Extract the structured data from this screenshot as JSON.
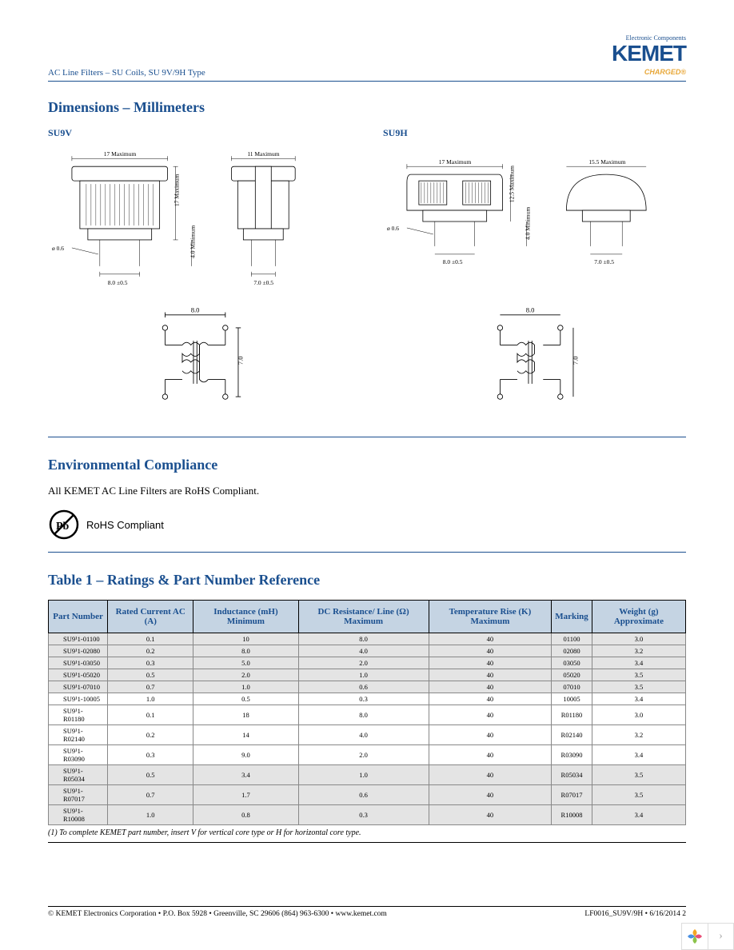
{
  "header": {
    "doc_title": "AC Line Filters – SU Coils, SU 9V/9H Type",
    "logo_tag": "Electronic Components",
    "logo_main": "KEMET",
    "logo_sub": "CHARGED®"
  },
  "sections": {
    "dimensions_title": "Dimensions – Millimeters",
    "compliance_title": "Environmental Compliance",
    "compliance_text": "All KEMET AC Line Filters are RoHS Compliant.",
    "rohs_label": "RoHS Compliant",
    "table_title": "Table 1 – Ratings & Part Number Reference"
  },
  "dims": {
    "su9v": {
      "label": "SU9V",
      "w1": "17 Maximum",
      "w2": "11 Maximum",
      "h1": "17 Maximum",
      "pin_w1": "8.0 ±0.5",
      "pin_w2": "7.0 ±0.5",
      "pin_l": "4.0 Minimum",
      "pin_d": "ø 0.6",
      "sch_w": "8.0",
      "sch_h": "7.0"
    },
    "su9h": {
      "label": "SU9H",
      "w1": "17 Maximum",
      "w2": "15.5 Maximum",
      "h1": "12.5 Maximum",
      "pin_w1": "8.0 ±0.5",
      "pin_w2": "7.0 ±0.5",
      "pin_l": "4.0 Minimum",
      "pin_d": "ø 0.6",
      "sch_w": "8.0",
      "sch_h": "7.0"
    }
  },
  "table": {
    "columns": [
      "Part Number",
      "Rated Current AC (A)",
      "Inductance (mH) Minimum",
      "DC Resistance/ Line (Ω) Maximum",
      "Temperature Rise (K) Maximum",
      "Marking",
      "Weight (g) Approximate"
    ],
    "rows": [
      [
        "SU9¹1-01100",
        "0.1",
        "10",
        "8.0",
        "40",
        "01100",
        "3.0"
      ],
      [
        "SU9¹1-02080",
        "0.2",
        "8.0",
        "4.0",
        "40",
        "02080",
        "3.2"
      ],
      [
        "SU9¹1-03050",
        "0.3",
        "5.0",
        "2.0",
        "40",
        "03050",
        "3.4"
      ],
      [
        "SU9¹1-05020",
        "0.5",
        "2.0",
        "1.0",
        "40",
        "05020",
        "3.5"
      ],
      [
        "SU9¹1-07010",
        "0.7",
        "1.0",
        "0.6",
        "40",
        "07010",
        "3.5"
      ],
      [
        "SU9¹1-10005",
        "1.0",
        "0.5",
        "0.3",
        "40",
        "10005",
        "3.4"
      ],
      [
        "SU9¹1-R01180",
        "0.1",
        "18",
        "8.0",
        "40",
        "R01180",
        "3.0"
      ],
      [
        "SU9¹1-R02140",
        "0.2",
        "14",
        "4.0",
        "40",
        "R02140",
        "3.2"
      ],
      [
        "SU9¹1-R03090",
        "0.3",
        "9.0",
        "2.0",
        "40",
        "R03090",
        "3.4"
      ],
      [
        "SU9¹1-R05034",
        "0.5",
        "3.4",
        "1.0",
        "40",
        "R05034",
        "3.5"
      ],
      [
        "SU9¹1-R07017",
        "0.7",
        "1.7",
        "0.6",
        "40",
        "R07017",
        "3.5"
      ],
      [
        "SU9¹1-R10008",
        "1.0",
        "0.8",
        "0.3",
        "40",
        "R10008",
        "3.4"
      ]
    ],
    "shaded": [
      0,
      1,
      2,
      3,
      4,
      9,
      10,
      11
    ],
    "footnote": "(1)  To complete KEMET part number, insert V for vertical core type or H for horizontal core type."
  },
  "footer": {
    "left": "© KEMET Electronics Corporation • P.O. Box 5928 • Greenville, SC 29606 (864) 963-6300 • www.kemet.com",
    "right": "LF0016_SU9V/9H • 6/16/2014       2"
  },
  "colors": {
    "brand_blue": "#1a4f8f",
    "brand_gold": "#e8a83a",
    "th_bg": "#c5d4e3",
    "shade": "#e4e4e4"
  }
}
